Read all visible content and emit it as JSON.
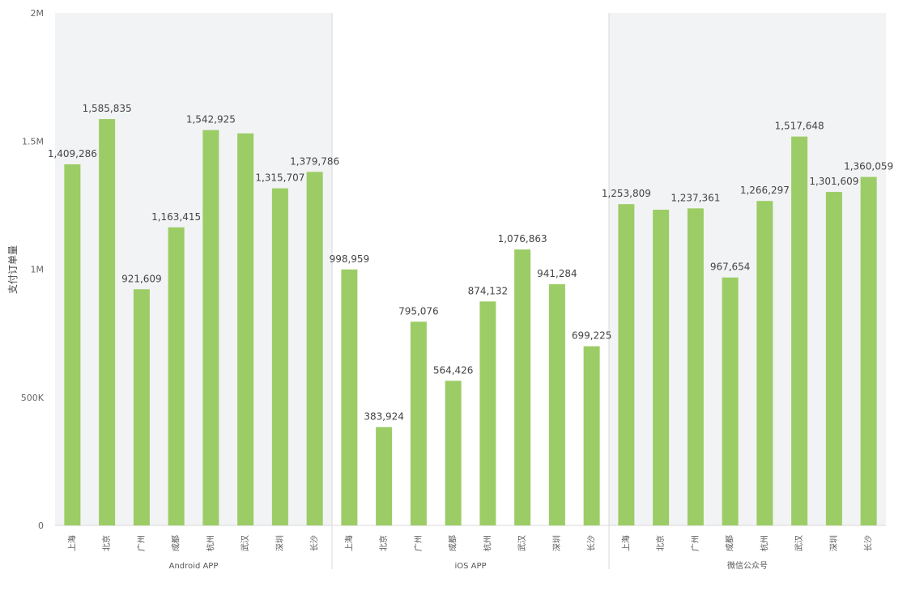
{
  "chart_data": {
    "type": "bar",
    "title": "",
    "xlabel": "",
    "ylabel": "支付订单量",
    "ylim": [
      0,
      2000000
    ],
    "yticks": [
      {
        "value": 0,
        "label": "0"
      },
      {
        "value": 500000,
        "label": "500K"
      },
      {
        "value": 1000000,
        "label": "1M"
      },
      {
        "value": 1500000,
        "label": "1.5M"
      },
      {
        "value": 2000000,
        "label": "2M"
      }
    ],
    "colors": {
      "bar": "#9ccc65",
      "band": "#f2f3f5",
      "axis": "#d9d9d9",
      "divider": "#d9d9d9"
    },
    "groups": [
      {
        "name": "Android APP",
        "shaded": true,
        "bars": [
          {
            "category": "上海",
            "value": 1409286,
            "label": "1,409,286"
          },
          {
            "category": "北京",
            "value": 1585835,
            "label": "1,585,835"
          },
          {
            "category": "广州",
            "value": 921609,
            "label": "921,609"
          },
          {
            "category": "成都",
            "value": 1163415,
            "label": "1,163,415"
          },
          {
            "category": "杭州",
            "value": 1542925,
            "label": "1,542,925"
          },
          {
            "category": "武汉",
            "value": 1530000,
            "label": null
          },
          {
            "category": "深圳",
            "value": 1315707,
            "label": "1,315,707"
          },
          {
            "category": "长沙",
            "value": 1379786,
            "label": "1,379,786"
          }
        ]
      },
      {
        "name": "iOS APP",
        "shaded": false,
        "bars": [
          {
            "category": "上海",
            "value": 998959,
            "label": "998,959"
          },
          {
            "category": "北京",
            "value": 383924,
            "label": "383,924"
          },
          {
            "category": "广州",
            "value": 795076,
            "label": "795,076"
          },
          {
            "category": "成都",
            "value": 564426,
            "label": "564,426"
          },
          {
            "category": "杭州",
            "value": 874132,
            "label": "874,132"
          },
          {
            "category": "武汉",
            "value": 1076863,
            "label": "1,076,863"
          },
          {
            "category": "深圳",
            "value": 941284,
            "label": "941,284"
          },
          {
            "category": "长沙",
            "value": 699225,
            "label": "699,225"
          }
        ]
      },
      {
        "name": "微信公众号",
        "shaded": true,
        "bars": [
          {
            "category": "上海",
            "value": 1253809,
            "label": "1,253,809"
          },
          {
            "category": "北京",
            "value": 1232000,
            "label": null
          },
          {
            "category": "广州",
            "value": 1237361,
            "label": "1,237,361"
          },
          {
            "category": "成都",
            "value": 967654,
            "label": "967,654"
          },
          {
            "category": "杭州",
            "value": 1266297,
            "label": "1,266,297"
          },
          {
            "category": "武汉",
            "value": 1517648,
            "label": "1,517,648"
          },
          {
            "category": "深圳",
            "value": 1301609,
            "label": "1,301,609"
          },
          {
            "category": "长沙",
            "value": 1360059,
            "label": "1,360,059"
          }
        ]
      }
    ]
  }
}
